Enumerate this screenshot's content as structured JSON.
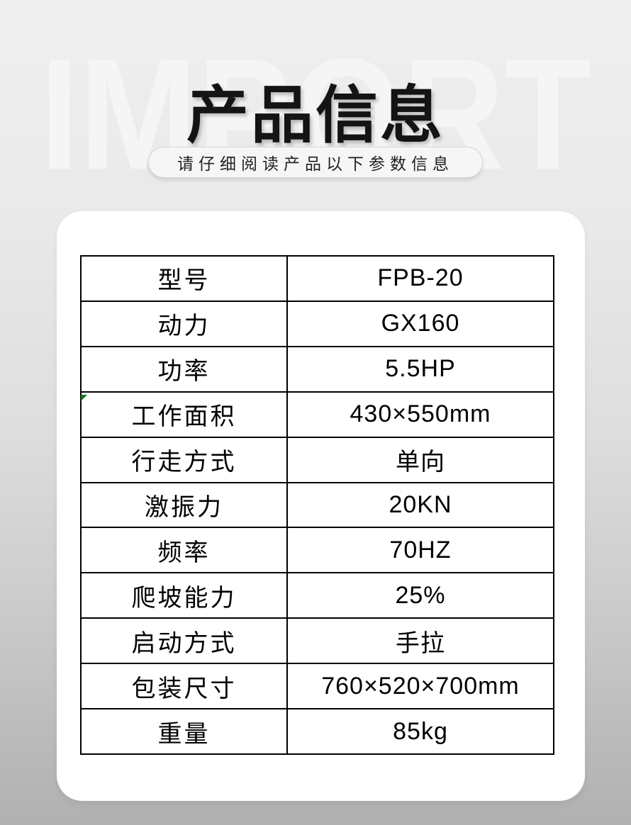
{
  "header": {
    "watermark": "IMPORT",
    "title": "产品信息",
    "subtitle": "请仔细阅读产品以下参数信息"
  },
  "spec_table": {
    "rows": [
      {
        "label": "型号",
        "value": "FPB-20"
      },
      {
        "label": "动力",
        "value": "GX160"
      },
      {
        "label": "功率",
        "value": "5.5HP"
      },
      {
        "label": "工作面积",
        "value": "430×550mm"
      },
      {
        "label": "行走方式",
        "value": "单向"
      },
      {
        "label": "激振力",
        "value": "20KN"
      },
      {
        "label": "频率",
        "value": "70HZ"
      },
      {
        "label": "爬坡能力",
        "value": "25%"
      },
      {
        "label": "启动方式",
        "value": "手拉"
      },
      {
        "label": "包装尺寸",
        "value": "760×520×700mm"
      },
      {
        "label": "重量",
        "value": "85kg"
      }
    ]
  },
  "colors": {
    "card_bg": "#ffffff",
    "table_border": "#000000",
    "cell_marker_green": "#0e7a12",
    "title_text": "#141414",
    "page_bg_top": "#efefef",
    "page_bg_bottom": "#b0b0b0"
  }
}
